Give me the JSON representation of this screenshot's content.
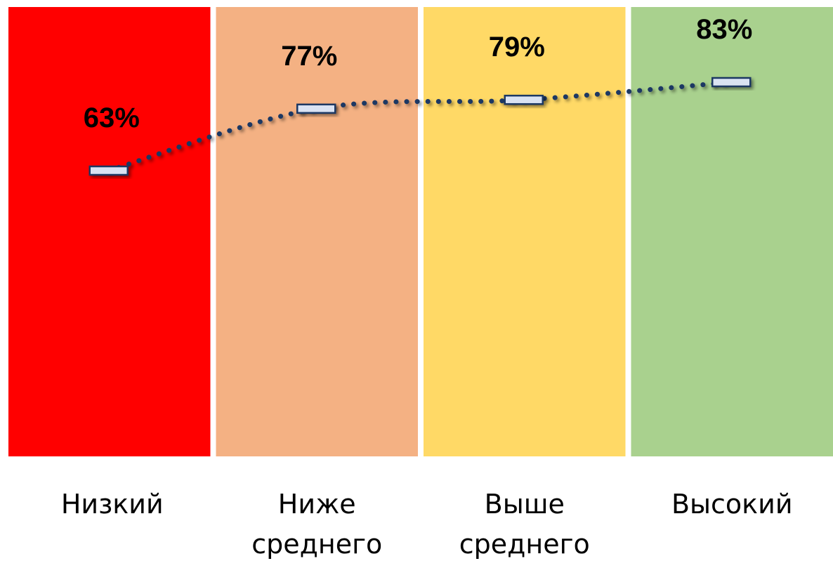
{
  "chart_data": {
    "type": "line",
    "categories": [
      "Низкий",
      "Ниже среднего",
      "Выше среднего",
      "Высокий"
    ],
    "category_label_lines": [
      [
        "Низкий"
      ],
      [
        "Ниже",
        "среднего"
      ],
      [
        "Выше",
        "среднего"
      ],
      [
        "Высокий"
      ]
    ],
    "band_colors": [
      "#ff0000",
      "#f4b183",
      "#ffd966",
      "#a9d18e"
    ],
    "series": [
      {
        "values": [
          63,
          77,
          79,
          83
        ],
        "data_labels": [
          "63%",
          "77%",
          "79%",
          "83%"
        ],
        "line_style": "dotted",
        "line_color": "#1f3864",
        "marker": "dash",
        "marker_fill": "#dae3f3",
        "marker_stroke": "#1f3864"
      }
    ],
    "title": "",
    "xlabel": "",
    "ylabel": "",
    "grid": false,
    "legend": "none"
  }
}
